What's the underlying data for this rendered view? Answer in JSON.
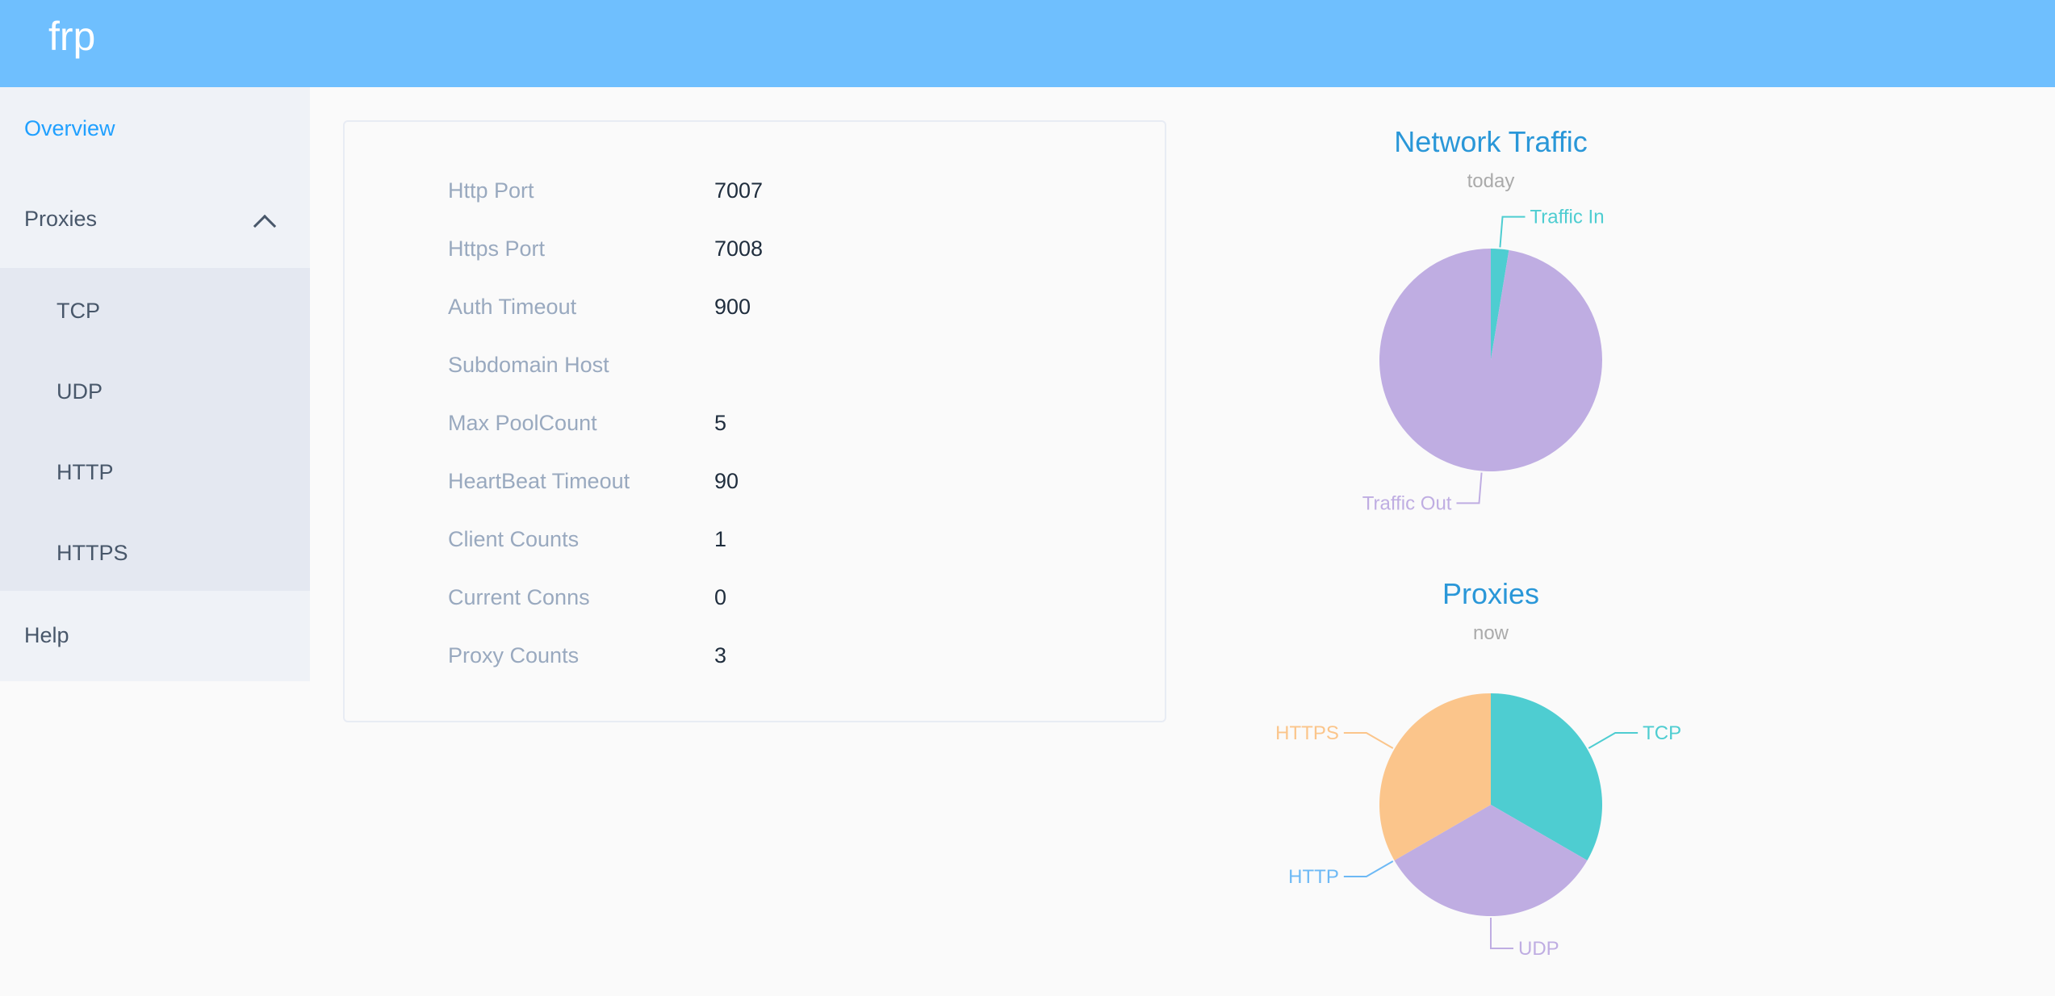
{
  "header": {
    "logo": "frp"
  },
  "sidebar": {
    "overview": "Overview",
    "proxies": "Proxies",
    "sub": [
      "TCP",
      "UDP",
      "HTTP",
      "HTTPS"
    ],
    "help": "Help",
    "accent": "#20a0ff"
  },
  "info": [
    {
      "label": "Http Port",
      "value": "7007"
    },
    {
      "label": "Https Port",
      "value": "7008"
    },
    {
      "label": "Auth Timeout",
      "value": "900"
    },
    {
      "label": "Subdomain Host",
      "value": ""
    },
    {
      "label": "Max PoolCount",
      "value": "5"
    },
    {
      "label": "HeartBeat Timeout",
      "value": "90"
    },
    {
      "label": "Client Counts",
      "value": "1"
    },
    {
      "label": "Current Conns",
      "value": "0"
    },
    {
      "label": "Proxy Counts",
      "value": "3"
    }
  ],
  "chart_data": [
    {
      "type": "pie",
      "title": "Network Traffic",
      "subtitle": "today",
      "slices": [
        {
          "name": "Traffic In",
          "value": 2.6,
          "color": "#4ecdd1"
        },
        {
          "name": "Traffic Out",
          "value": 97.4,
          "color": "#bfade2"
        }
      ]
    },
    {
      "type": "pie",
      "title": "Proxies",
      "subtitle": "now",
      "slices": [
        {
          "name": "TCP",
          "value": 1,
          "color": "#4ecdd1"
        },
        {
          "name": "UDP",
          "value": 1,
          "color": "#bfade2"
        },
        {
          "name": "HTTP",
          "value": 0,
          "color": "#6db9f5"
        },
        {
          "name": "HTTPS",
          "value": 1,
          "color": "#fbc58b"
        }
      ]
    }
  ]
}
